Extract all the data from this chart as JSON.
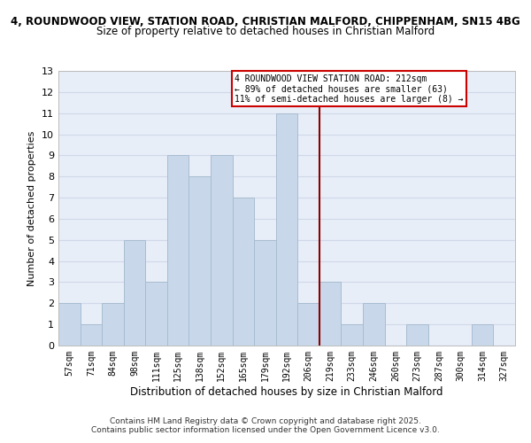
{
  "title_line1": "4, ROUNDWOOD VIEW, STATION ROAD, CHRISTIAN MALFORD, CHIPPENHAM, SN15 4BG",
  "title_line2": "Size of property relative to detached houses in Christian Malford",
  "xlabel": "Distribution of detached houses by size in Christian Malford",
  "ylabel": "Number of detached properties",
  "bin_labels": [
    "57sqm",
    "71sqm",
    "84sqm",
    "98sqm",
    "111sqm",
    "125sqm",
    "138sqm",
    "152sqm",
    "165sqm",
    "179sqm",
    "192sqm",
    "206sqm",
    "219sqm",
    "233sqm",
    "246sqm",
    "260sqm",
    "273sqm",
    "287sqm",
    "300sqm",
    "314sqm",
    "327sqm"
  ],
  "bar_heights": [
    2,
    1,
    2,
    5,
    3,
    9,
    8,
    9,
    7,
    5,
    11,
    2,
    3,
    1,
    2,
    0,
    1,
    0,
    0,
    1,
    0
  ],
  "bar_color": "#c8d8ea",
  "bar_edge_color": "#a8bcd0",
  "ylim": [
    0,
    13
  ],
  "yticks": [
    0,
    1,
    2,
    3,
    4,
    5,
    6,
    7,
    8,
    9,
    10,
    11,
    12,
    13
  ],
  "annotation_title": "4 ROUNDWOOD VIEW STATION ROAD: 212sqm",
  "annotation_line1": "← 89% of detached houses are smaller (63)",
  "annotation_line2": "11% of semi-detached houses are larger (8) →",
  "annotation_box_color": "#ffffff",
  "annotation_box_edge": "#cc0000",
  "vline_color": "#8b0000",
  "background_color": "#e8eef8",
  "grid_color": "#d0d8e8",
  "footer_line1": "Contains HM Land Registry data © Crown copyright and database right 2025.",
  "footer_line2": "Contains public sector information licensed under the Open Government Licence v3.0."
}
